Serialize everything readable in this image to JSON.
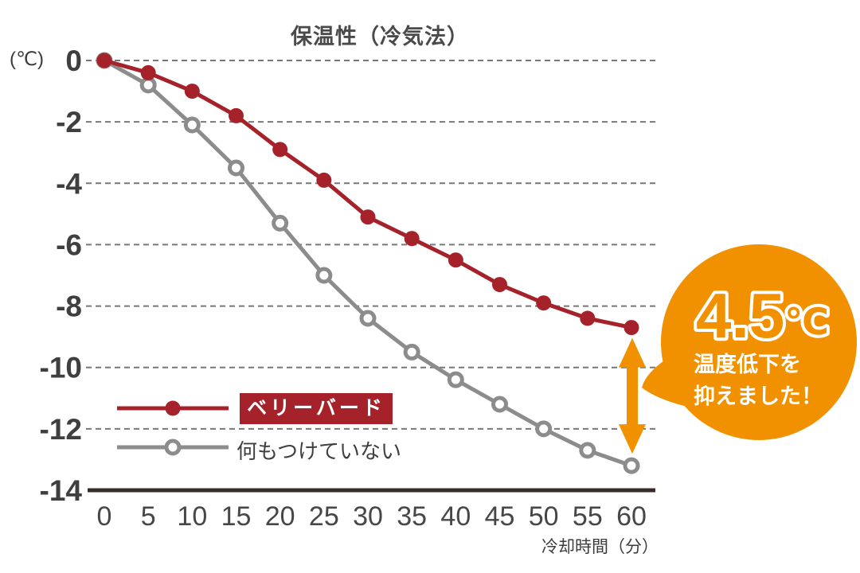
{
  "title": "保温性（冷気法）",
  "y_axis": {
    "unit": "(℃)"
  },
  "x_axis": {
    "label": "冷却時間（分）"
  },
  "legend": [
    {
      "label": "ベリーバード",
      "marker": "filled-dot",
      "color": "#A6222A"
    },
    {
      "label": "何もつけていない",
      "marker": "open-dot",
      "color": "#8C8C8C"
    }
  ],
  "badge": {
    "value": "4.5",
    "unit": "℃",
    "line1": "温度低下を",
    "line2": "抑えました！"
  },
  "colors": {
    "series_red": "#A6222A",
    "series_gray": "#8C8C8C",
    "highlight_orange": "#F29100",
    "grid": "#777777",
    "baseline": "#362D2B",
    "tick_text": "#474747"
  },
  "chart_data": {
    "type": "line",
    "title": "保温性（冷気法）",
    "xlabel": "冷却時間（分）",
    "ylabel": "(℃)",
    "x": [
      0,
      5,
      10,
      15,
      20,
      25,
      30,
      35,
      40,
      45,
      50,
      55,
      60
    ],
    "series": [
      {
        "name": "ベリーバード",
        "color": "#A6222A",
        "marker": "filled",
        "values": [
          0,
          -0.4,
          -1.0,
          -1.8,
          -2.9,
          -3.9,
          -5.1,
          -5.8,
          -6.5,
          -7.3,
          -7.9,
          -8.4,
          -8.7
        ]
      },
      {
        "name": "何もつけていない",
        "color": "#8C8C8C",
        "marker": "open",
        "values": [
          0,
          -0.8,
          -2.1,
          -3.5,
          -5.3,
          -7.0,
          -8.4,
          -9.5,
          -10.4,
          -11.2,
          -12.0,
          -12.7,
          -13.2
        ]
      }
    ],
    "ylim": [
      -14,
      0
    ],
    "y_ticks": [
      0,
      -2,
      -4,
      -6,
      -8,
      -10,
      -12,
      -14
    ],
    "grid": "horizontal-dashed",
    "legend_position": "lower-left-inside",
    "annotation": {
      "delta": "4.5",
      "unit": "℃",
      "text": "温度低下を抑えました！",
      "at_x": 60
    }
  }
}
